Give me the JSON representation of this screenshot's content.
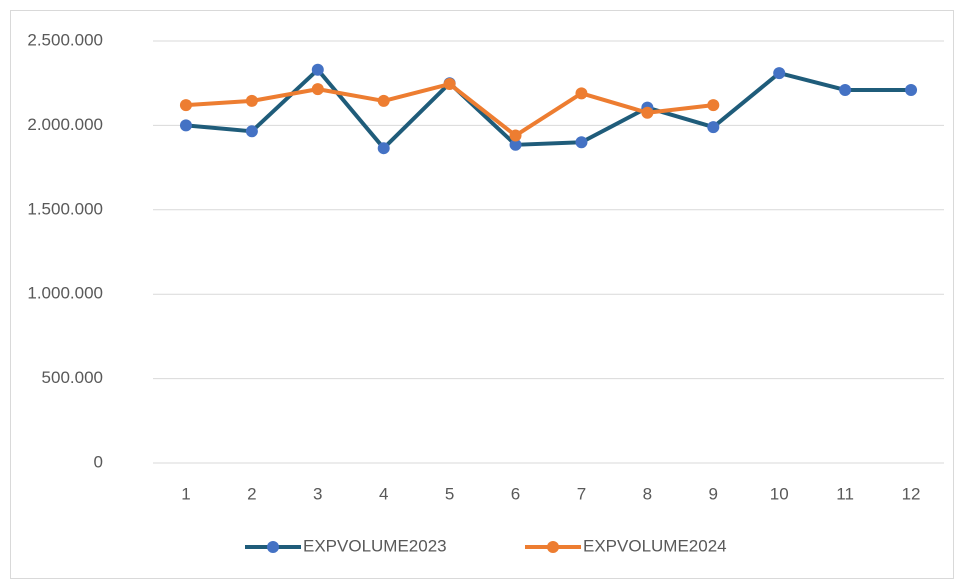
{
  "chart_data": {
    "type": "line",
    "categories": [
      "1",
      "2",
      "3",
      "4",
      "5",
      "6",
      "7",
      "8",
      "9",
      "10",
      "11",
      "12"
    ],
    "series": [
      {
        "name": "EXPVOLUME2023",
        "color": "#1f5c7a",
        "marker_color": "#4472c4",
        "values": [
          2000000,
          1965000,
          2330000,
          1865000,
          2250000,
          1885000,
          1900000,
          2105000,
          1990000,
          2310000,
          2210000,
          2210000
        ]
      },
      {
        "name": "EXPVOLUME2024",
        "color": "#ed7d31",
        "marker_color": "#ed7d31",
        "values": [
          2120000,
          2145000,
          2215000,
          2145000,
          2245000,
          1940000,
          2190000,
          2075000,
          2120000,
          null,
          null,
          null
        ]
      }
    ],
    "ylim": [
      0,
      2500000
    ],
    "yticks": [
      0,
      {
        "value": 500000,
        "label": "500.000"
      },
      {
        "value": 1000000,
        "label": "1.000.000"
      },
      {
        "value": 1500000,
        "label": "1.500.000"
      },
      {
        "value": 2000000,
        "label": "2.000.000"
      },
      {
        "value": 2500000,
        "label": "2.500.000"
      }
    ],
    "grid": true,
    "legend": "bottom"
  }
}
